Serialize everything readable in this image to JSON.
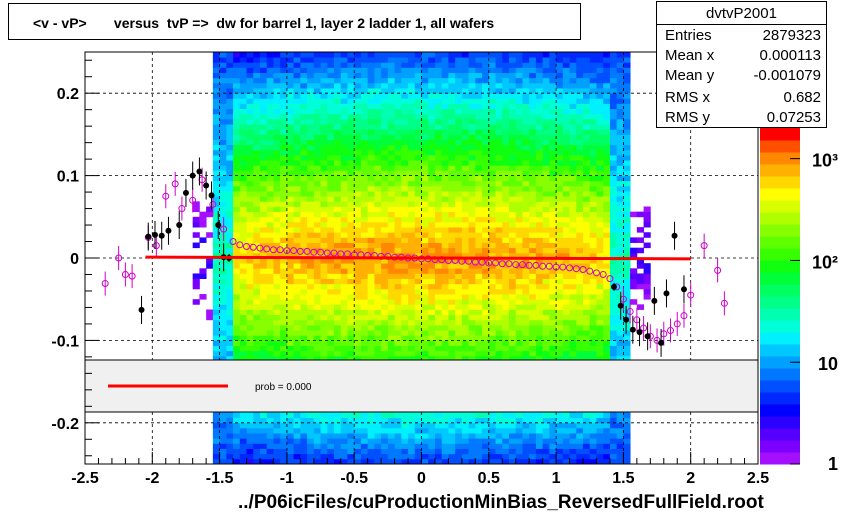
{
  "title": "<v - vP>       versus  tvP =>  dw for barrel 1, layer 2 ladder 1, all wafers",
  "stats": {
    "name": "dvtvP2001",
    "rows": [
      {
        "label": "Entries",
        "value": "2879323"
      },
      {
        "label": "Mean x",
        "value": "0.000113"
      },
      {
        "label": "Mean y",
        "value": "-0.001079"
      },
      {
        "label": "RMS x",
        "value": "0.682"
      },
      {
        "label": "RMS y",
        "value": "0.07253"
      }
    ]
  },
  "fit_legend": {
    "label": "prob = 0.000",
    "color": "#ff0000"
  },
  "file_label": "../P06icFiles/cuProductionMinBias_ReversedFullField.root",
  "chart_data": {
    "type": "heatmap",
    "xlim": [
      -2.5,
      2.5
    ],
    "ylim": [
      -0.25,
      0.25
    ],
    "x_ticks": [
      "-2.5",
      "-2",
      "-1.5",
      "-1",
      "-0.5",
      "0",
      "0.5",
      "1",
      "1.5",
      "2",
      "2.5"
    ],
    "x_tick_values": [
      -2.5,
      -2,
      -1.5,
      -1,
      -0.5,
      0,
      0.5,
      1,
      1.5,
      2,
      2.5
    ],
    "y_ticks": [
      "0.2",
      "0.1",
      "0",
      "-0.1",
      "-0.2"
    ],
    "y_tick_values": [
      0.2,
      0.1,
      0,
      -0.1,
      -0.2
    ],
    "grid": true,
    "colorbar": {
      "scale": "log",
      "labels": [
        "1",
        "10",
        "10²",
        "10³"
      ],
      "values": [
        1,
        10,
        100,
        1000
      ],
      "max": 2000
    },
    "fit_line": {
      "x": [
        -2.05,
        2.0
      ],
      "y": [
        0.001,
        -0.001
      ],
      "color": "#ff0000"
    },
    "profile_black": {
      "x": [
        -2.08,
        -2.03,
        -1.98,
        -1.93,
        -1.88,
        -1.8,
        -1.75,
        -1.7,
        -1.65,
        -1.6,
        -1.56,
        -1.51,
        -1.47,
        -1.43,
        1.43,
        1.48,
        1.52,
        1.57,
        1.62,
        1.68,
        1.73,
        1.78,
        1.82,
        1.88,
        1.95
      ],
      "y": [
        -0.063,
        0.026,
        0.028,
        0.027,
        0.033,
        0.04,
        0.079,
        0.1,
        0.105,
        0.088,
        0.076,
        0.04,
        0.001,
        0.0,
        -0.035,
        -0.058,
        -0.075,
        -0.087,
        -0.09,
        -0.095,
        -0.052,
        -0.103,
        -0.043,
        0.027,
        -0.038
      ]
    },
    "profile_magenta": {
      "x": [
        -2.35,
        -2.25,
        -2.2,
        -2.15,
        -2.03,
        -1.97,
        -1.9,
        -1.83,
        -1.78,
        -1.7,
        -1.63,
        -1.55,
        -1.47,
        -1.4,
        -1.35,
        -1.3,
        -1.25,
        -1.2,
        -1.15,
        -1.1,
        -1.05,
        -1.0,
        -0.95,
        -0.9,
        -0.85,
        -0.8,
        -0.75,
        -0.7,
        -0.65,
        -0.6,
        -0.55,
        -0.5,
        -0.45,
        -0.4,
        -0.35,
        -0.3,
        -0.25,
        -0.2,
        -0.15,
        -0.1,
        -0.05,
        0.0,
        0.05,
        0.1,
        0.15,
        0.2,
        0.25,
        0.3,
        0.35,
        0.4,
        0.45,
        0.5,
        0.55,
        0.6,
        0.65,
        0.7,
        0.75,
        0.8,
        0.85,
        0.9,
        0.95,
        1.0,
        1.05,
        1.1,
        1.15,
        1.2,
        1.25,
        1.3,
        1.35,
        1.4,
        1.45,
        1.5,
        1.55,
        1.6,
        1.65,
        1.7,
        1.75,
        1.8,
        1.85,
        1.9,
        1.95,
        2.0,
        2.1,
        2.2,
        2.25
      ],
      "y": [
        -0.031,
        0.0,
        -0.02,
        -0.022,
        0.025,
        0.015,
        0.075,
        0.09,
        0.06,
        0.07,
        0.095,
        0.065,
        0.035,
        0.02,
        0.016,
        0.014,
        0.013,
        0.012,
        0.011,
        0.01,
        0.01,
        0.009,
        0.009,
        0.008,
        0.008,
        0.007,
        0.007,
        0.006,
        0.006,
        0.005,
        0.005,
        0.004,
        0.004,
        0.003,
        0.003,
        0.002,
        0.002,
        0.001,
        0.001,
        0.0,
        0.0,
        -0.001,
        -0.001,
        -0.002,
        -0.002,
        -0.003,
        -0.003,
        -0.004,
        -0.004,
        -0.005,
        -0.005,
        -0.006,
        -0.006,
        -0.007,
        -0.007,
        -0.008,
        -0.008,
        -0.009,
        -0.009,
        -0.01,
        -0.01,
        -0.011,
        -0.011,
        -0.012,
        -0.013,
        -0.014,
        -0.016,
        -0.018,
        -0.02,
        -0.025,
        -0.035,
        -0.05,
        -0.065,
        -0.075,
        -0.085,
        -0.095,
        -0.1,
        -0.092,
        -0.088,
        -0.08,
        -0.07,
        -0.045,
        0.015,
        -0.015,
        -0.055
      ]
    }
  }
}
